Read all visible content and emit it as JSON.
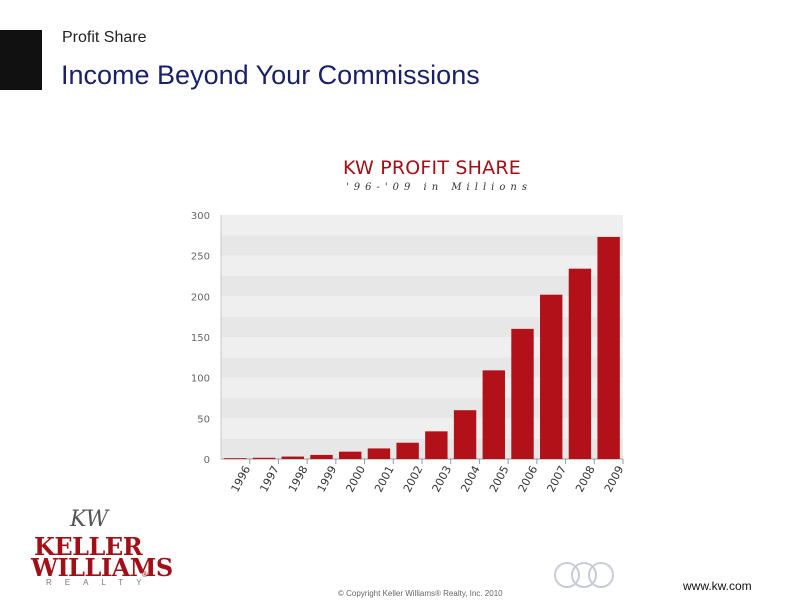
{
  "header": {
    "subtitle": "Profit Share",
    "title": "Income Beyond Your Commissions"
  },
  "chart_data": {
    "type": "bar",
    "title": "KW PROFIT SHARE",
    "subtitle": "'96-'09 in Millions",
    "xlabel": "",
    "ylabel": "",
    "categories": [
      "1996",
      "1997",
      "1998",
      "1999",
      "2000",
      "2001",
      "2002",
      "2003",
      "2004",
      "2005",
      "2006",
      "2007",
      "2008",
      "2009"
    ],
    "values": [
      1,
      1.5,
      3,
      5,
      9,
      13,
      20,
      34,
      60,
      109,
      160,
      202,
      234,
      273
    ],
    "ylim": [
      0,
      300
    ],
    "yticks": [
      "0",
      "50",
      "100",
      "150",
      "200",
      "250",
      "300"
    ],
    "grid": true,
    "bar_color": "#b3111a",
    "background_band_colors": [
      "#e7e7e7",
      "#efefef"
    ]
  },
  "footer": {
    "logo_line1": "KELLER",
    "logo_line2": "WILLIAMS",
    "logo_realty": "REALTY",
    "logo_reg": "®",
    "logo_seal": "KW",
    "copyright": "© Copyright Keller Williams® Realty, Inc. 2010",
    "url": "www.kw.com"
  },
  "colors": {
    "title": "#1a1f6a",
    "brand_red": "#a30f17"
  }
}
